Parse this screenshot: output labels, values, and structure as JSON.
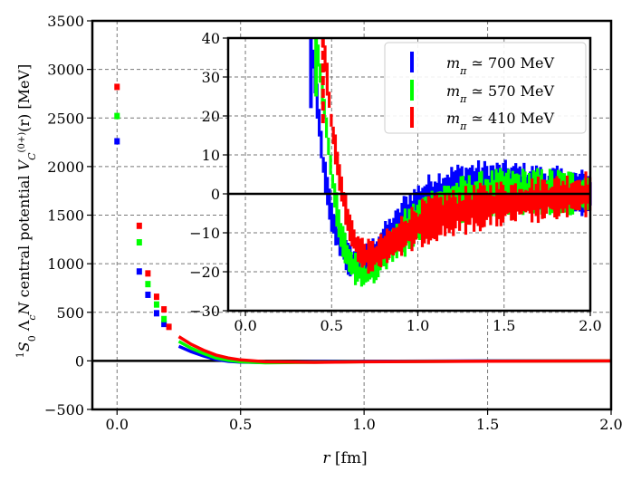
{
  "chart_data": [
    {
      "id": "main",
      "type": "scatter",
      "title": "",
      "xlabel": "r [fm]",
      "ylabel": "1S0 ΛcN central potential VC(0+)(r) [MeV]",
      "ylabel_parts": {
        "spin_sup": "1",
        "spin_main": "S",
        "spin_sub": "0",
        "lambda": "Λ",
        "c_sub": "c",
        "n": "N",
        "middle": " central potential ",
        "v": "V",
        "v_sub": "C",
        "v_sup": "(0+)",
        "arg": "(r)",
        "unit": " [MeV]"
      },
      "xlim": [
        -0.1,
        2.0
      ],
      "ylim": [
        -500,
        3500
      ],
      "xticks": [
        0.0,
        0.5,
        1.0,
        1.5,
        2.0
      ],
      "xtick_labels": [
        "0.0",
        "0.5",
        "1.0",
        "1.5",
        "2.0"
      ],
      "yticks": [
        -500,
        0,
        500,
        1000,
        1500,
        2000,
        2500,
        3000,
        3500
      ],
      "ytick_labels": [
        "−500",
        "0",
        "500",
        "1000",
        "1500",
        "2000",
        "2500",
        "3000",
        "3500"
      ],
      "grid": true,
      "zero_line": true,
      "series": [
        {
          "name": "mπ ≃ 700 MeV",
          "color": "#0000ff",
          "x": [
            0.0,
            0.09,
            0.125,
            0.16,
            0.19
          ],
          "y": [
            2260,
            920,
            680,
            490,
            380
          ]
        },
        {
          "name": "mπ ≃ 570 MeV",
          "color": "#00ff00",
          "x": [
            0.0,
            0.09,
            0.125,
            0.16,
            0.19
          ],
          "y": [
            2520,
            1220,
            790,
            580,
            430
          ]
        },
        {
          "name": "mπ ≃ 410 MeV",
          "color": "#ff0000",
          "x": [
            0.0,
            0.09,
            0.125,
            0.16,
            0.19,
            0.21
          ],
          "y": [
            2820,
            1390,
            900,
            660,
            530,
            350
          ]
        }
      ],
      "tail_curves": [
        {
          "name": "mπ ≃ 700 MeV",
          "color": "#0000ff",
          "x": [
            0.25,
            0.3,
            0.35,
            0.4,
            0.45,
            0.5,
            0.6,
            0.8,
            1.0,
            1.5,
            2.0
          ],
          "y": [
            150,
            95,
            50,
            15,
            -5,
            -12,
            -18,
            -10,
            -5,
            0,
            0
          ]
        },
        {
          "name": "mπ ≃ 570 MeV",
          "color": "#00ff00",
          "x": [
            0.25,
            0.3,
            0.35,
            0.4,
            0.45,
            0.5,
            0.6,
            0.8,
            1.0,
            1.5,
            2.0
          ],
          "y": [
            200,
            130,
            75,
            30,
            5,
            -10,
            -20,
            -14,
            -8,
            -2,
            0
          ]
        },
        {
          "name": "mπ ≃ 410 MeV",
          "color": "#ff0000",
          "x": [
            0.25,
            0.3,
            0.35,
            0.4,
            0.45,
            0.5,
            0.6,
            0.8,
            1.0,
            1.5,
            2.0
          ],
          "y": [
            250,
            170,
            110,
            60,
            30,
            10,
            -10,
            -15,
            -10,
            -3,
            0
          ]
        }
      ]
    },
    {
      "id": "inset",
      "type": "line",
      "title": "",
      "xlim": [
        -0.1,
        2.0
      ],
      "ylim": [
        -30,
        40
      ],
      "xticks": [
        0.0,
        0.5,
        1.0,
        1.5,
        2.0
      ],
      "xtick_labels": [
        "0.0",
        "0.5",
        "1.0",
        "1.5",
        "2.0"
      ],
      "yticks": [
        -30,
        -20,
        -10,
        0,
        10,
        20,
        30,
        40
      ],
      "ytick_labels": [
        "−30",
        "−20",
        "−10",
        "0",
        "10",
        "20",
        "30",
        "40"
      ],
      "grid": true,
      "zero_line": true,
      "legend_position": "top-right",
      "series": [
        {
          "name": "mπ ≃ 700 MeV",
          "label_prefix": "m",
          "label_sub": "π",
          "label_rest": " ≃ 700 MeV",
          "color": "#0000ff",
          "noise": 2.5,
          "x": [
            0.38,
            0.42,
            0.45,
            0.5,
            0.55,
            0.6,
            0.65,
            0.7,
            0.75,
            0.8,
            0.9,
            1.0,
            1.1,
            1.2,
            1.3,
            1.4,
            1.5,
            1.6,
            1.7,
            1.8,
            1.9,
            2.0
          ],
          "y": [
            40,
            22,
            8,
            -6,
            -13,
            -17,
            -18,
            -17,
            -15,
            -12,
            -7,
            -3,
            0,
            1.5,
            2.5,
            2.5,
            2.5,
            2,
            1.5,
            1,
            0.5,
            0
          ]
        },
        {
          "name": "mπ ≃ 570 MeV",
          "label_prefix": "m",
          "label_sub": "π",
          "label_rest": " ≃ 570 MeV",
          "color": "#00ff00",
          "noise": 2.5,
          "x": [
            0.41,
            0.45,
            0.5,
            0.55,
            0.6,
            0.65,
            0.7,
            0.75,
            0.8,
            0.9,
            1.0,
            1.1,
            1.2,
            1.3,
            1.4,
            1.5,
            1.6,
            1.7,
            1.8,
            1.9,
            2.0
          ],
          "y": [
            40,
            25,
            5,
            -10,
            -17,
            -20,
            -21,
            -19,
            -16,
            -11,
            -7,
            -4,
            -2,
            -1,
            0,
            0.5,
            0.5,
            0.5,
            0.5,
            0,
            0
          ]
        },
        {
          "name": "mπ ≃ 410 MeV",
          "label_prefix": "m",
          "label_sub": "π",
          "label_rest": " ≃ 410 MeV",
          "color": "#ff0000",
          "noise": 2.5,
          "x": [
            0.45,
            0.5,
            0.55,
            0.6,
            0.65,
            0.7,
            0.75,
            0.8,
            0.9,
            1.0,
            1.1,
            1.2,
            1.3,
            1.4,
            1.5,
            1.6,
            1.7,
            1.8,
            1.9,
            2.0
          ],
          "y": [
            40,
            18,
            3,
            -8,
            -14,
            -16,
            -16,
            -14,
            -11,
            -8,
            -6,
            -5,
            -4,
            -3,
            -2.5,
            -2,
            -1.5,
            -1,
            -0.5,
            0
          ]
        }
      ]
    }
  ]
}
